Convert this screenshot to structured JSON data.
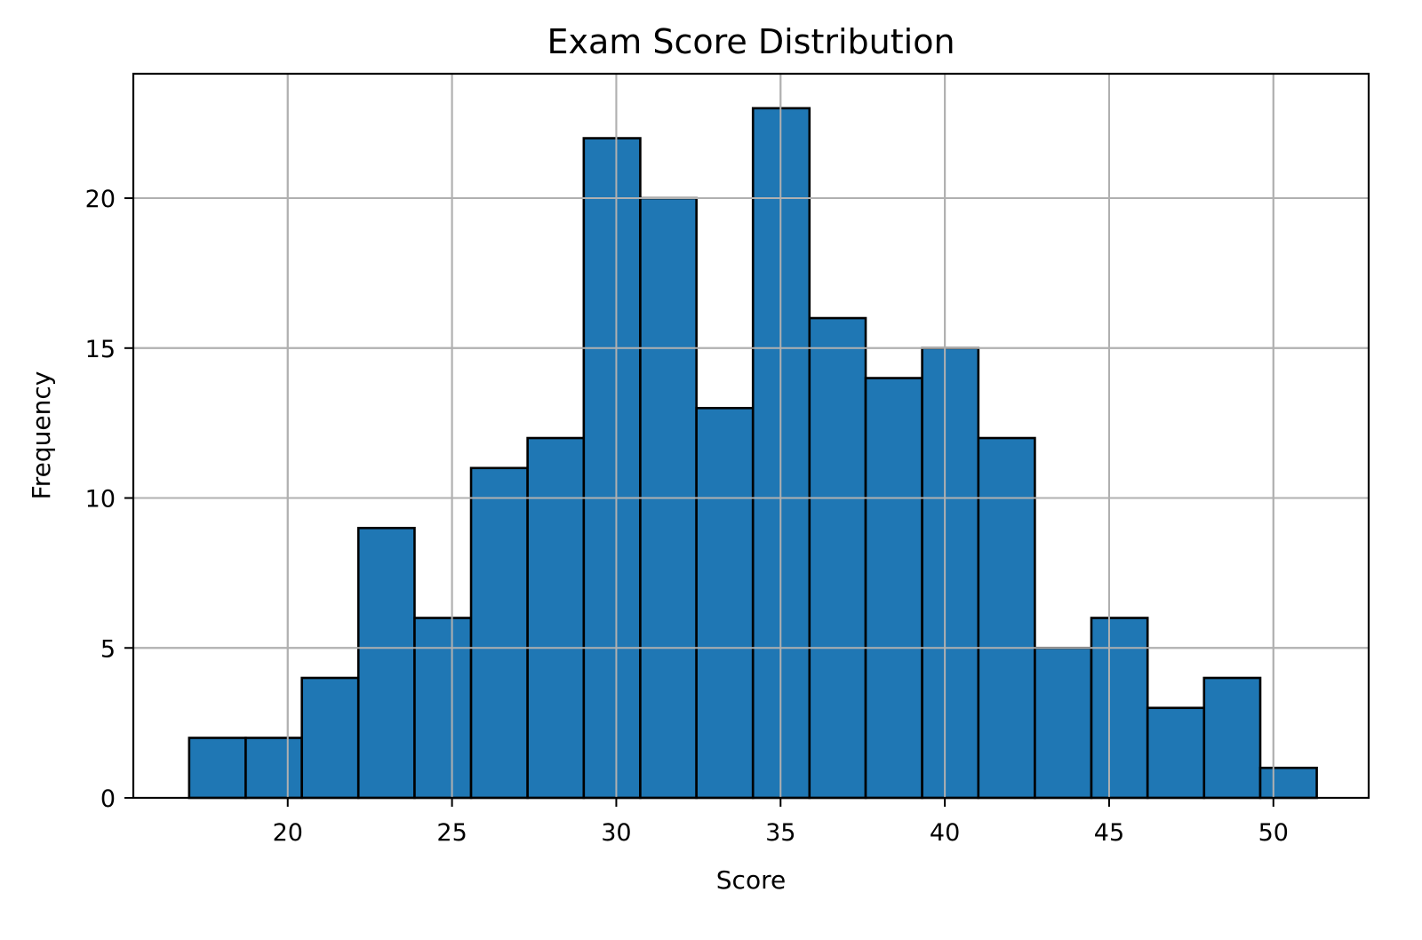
{
  "chart_data": {
    "type": "bar",
    "subtype": "histogram",
    "title": "Exam Score Distribution",
    "xlabel": "Score",
    "ylabel": "Frequency",
    "bin_start": 17.0,
    "bin_width": 1.716,
    "bin_edges": [
      17.0,
      18.72,
      20.43,
      22.15,
      23.86,
      25.58,
      27.3,
      29.01,
      30.73,
      32.44,
      34.16,
      35.88,
      37.59,
      39.31,
      41.02,
      42.74,
      44.46,
      46.17,
      47.89,
      49.6,
      51.32
    ],
    "values": [
      2,
      2,
      4,
      9,
      6,
      11,
      12,
      22,
      20,
      13,
      23,
      16,
      14,
      15,
      12,
      5,
      6,
      3,
      4,
      1
    ],
    "xlim": [
      15.3,
      52.9
    ],
    "ylim": [
      0,
      24.15
    ],
    "xticks": [
      20,
      25,
      30,
      35,
      40,
      45,
      50
    ],
    "yticks": [
      0,
      5,
      10,
      15,
      20
    ],
    "grid": true,
    "legend": null,
    "bar_color": "#1f77b4",
    "edge_color": "#000000",
    "grid_color": "#b0b0b0"
  }
}
